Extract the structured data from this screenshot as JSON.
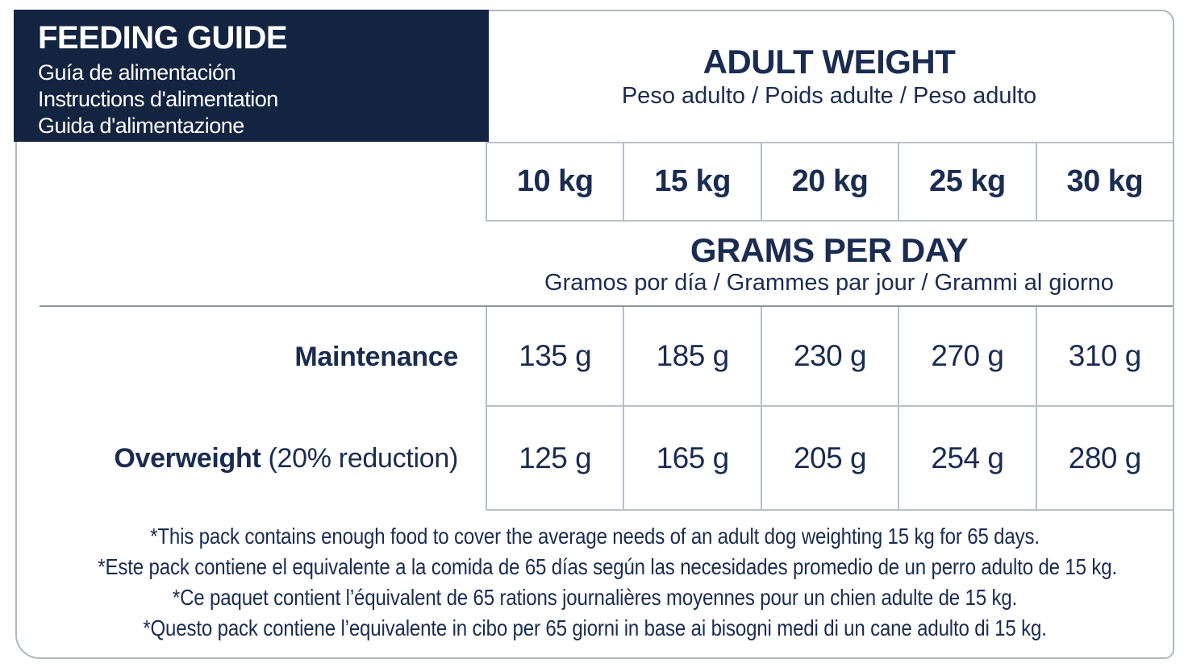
{
  "colors": {
    "navy_background": "#122440",
    "text_navy": "#1a2c50",
    "grid_line": "#b8c0c7",
    "heavy_rule": "#8b959c",
    "panel_border": "#aeb8bf",
    "background": "#ffffff"
  },
  "header_box": {
    "title": "FEEDING GUIDE",
    "subtitles": [
      "Guía de alimentación",
      "Instructions d'alimentation",
      "Guida d'alimentazione"
    ]
  },
  "adult_weight": {
    "title": "ADULT WEIGHT",
    "subtitle": "Peso adulto / Poids adulte / Peso adulto"
  },
  "weights": [
    "10 kg",
    "15 kg",
    "20 kg",
    "25 kg",
    "30 kg"
  ],
  "grams_per_day": {
    "title": "GRAMS PER DAY",
    "subtitle": "Gramos por día / Grammes par jour / Grammi al giorno"
  },
  "rows": {
    "maintenance": {
      "label": "Maintenance",
      "values": [
        "135 g",
        "185 g",
        "230 g",
        "270 g",
        "310 g"
      ]
    },
    "overweight": {
      "label": "Overweight",
      "label_note": "(20% reduction)",
      "values": [
        "125 g",
        "165 g",
        "205 g",
        "254 g",
        "280 g"
      ]
    }
  },
  "footnotes": [
    "*This pack contains enough food to cover the average needs of an adult dog weighting 15 kg for 65 days.",
    "*Este pack contiene el equivalente a la comida de 65 días según las necesidades promedio de un perro adulto de 15 kg.",
    "*Ce paquet contient l’équivalent de 65 rations journalières moyennes pour un chien adulte de 15 kg.",
    "*Questo pack contiene l’equivalente in cibo per 65 giorni in base ai bisogni medi di un cane adulto di 15 kg."
  ]
}
